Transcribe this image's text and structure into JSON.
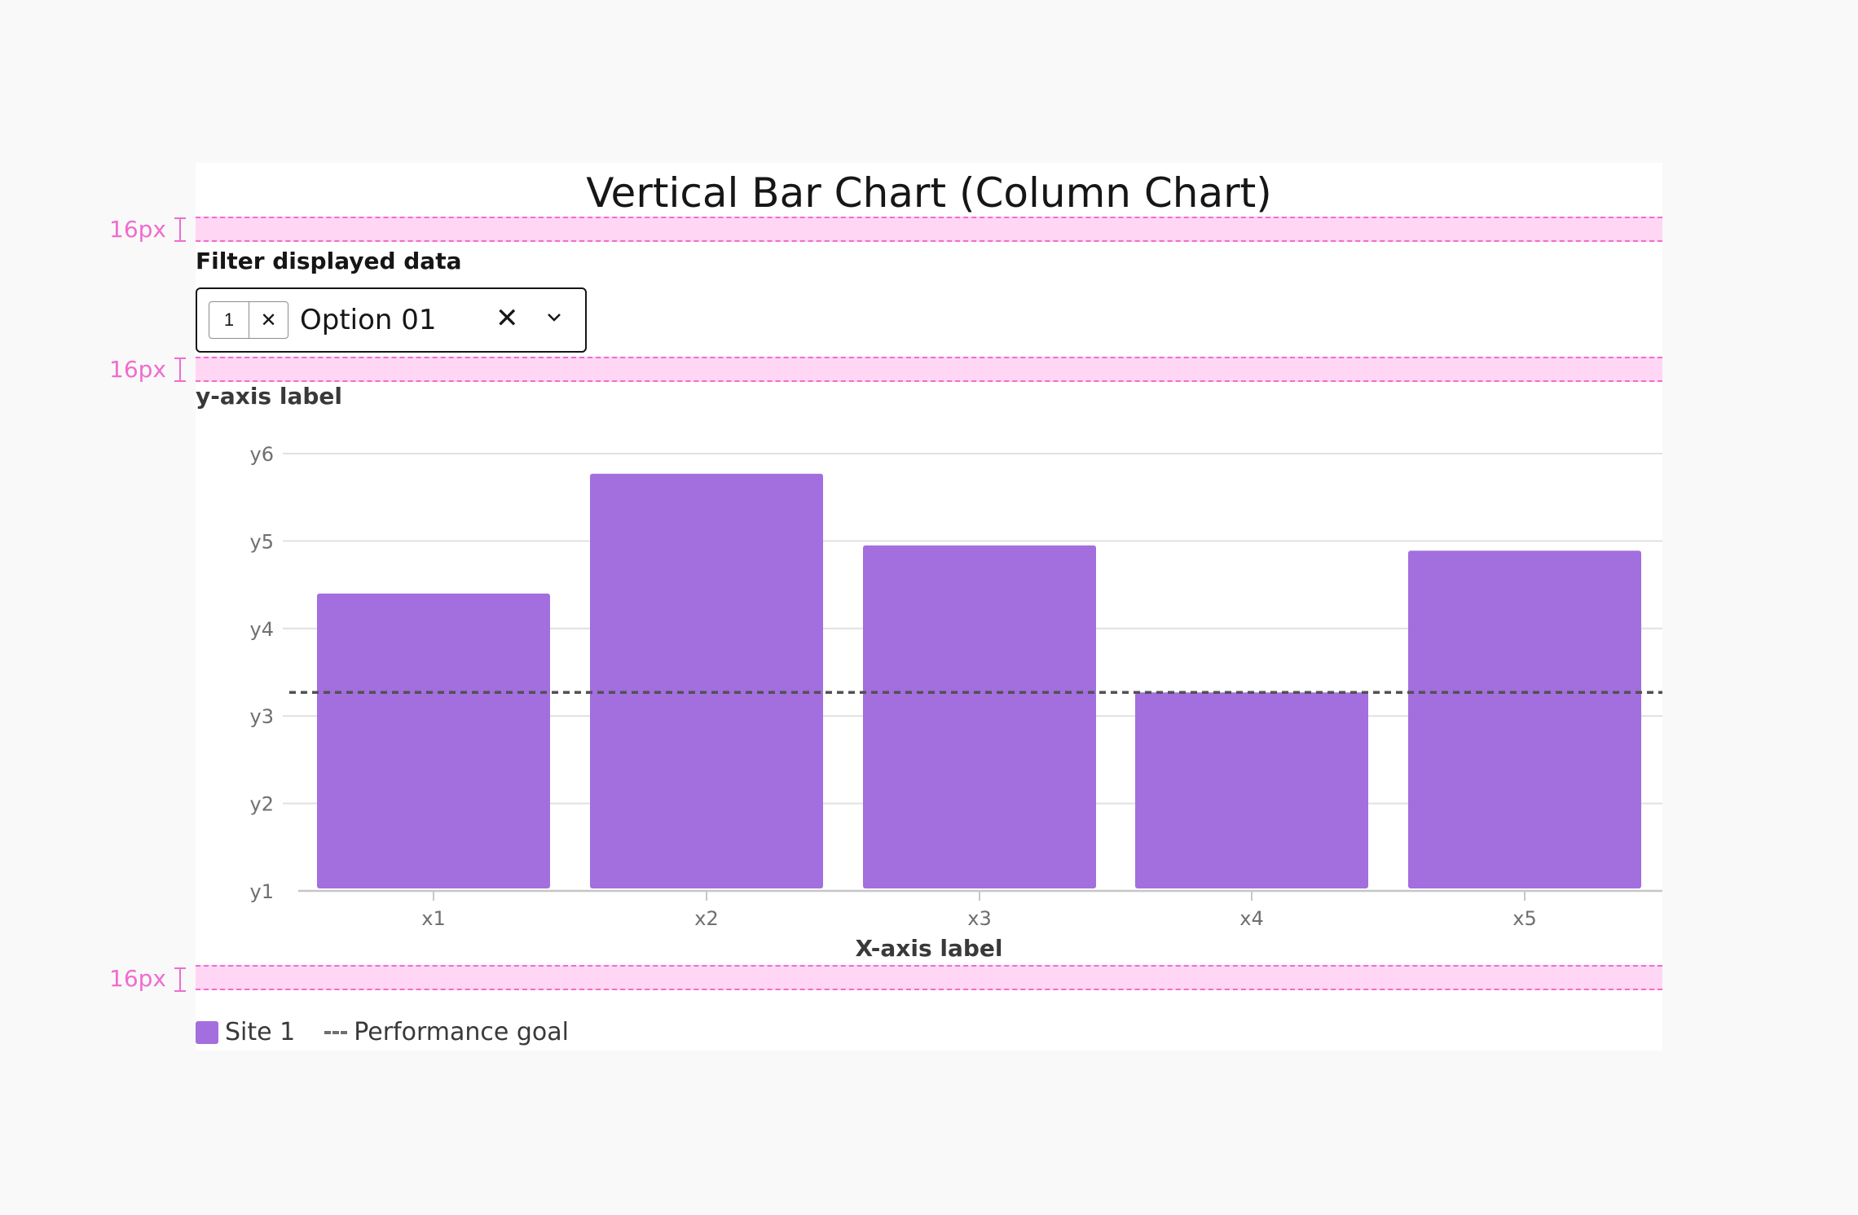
{
  "title": "Vertical Bar Chart (Column Chart)",
  "spacing_annotation": "16px",
  "filter": {
    "label": "Filter displayed data",
    "tag_count": "1",
    "selected_value": "Option 01"
  },
  "chart_data": {
    "type": "bar",
    "title": "Vertical Bar Chart (Column Chart)",
    "xlabel": "X-axis label",
    "ylabel": "y-axis label",
    "categories": [
      "x1",
      "x2",
      "x3",
      "x4",
      "x5"
    ],
    "y_ticks": [
      "y1",
      "y2",
      "y3",
      "y4",
      "y5",
      "y6"
    ],
    "ylim": [
      1,
      6
    ],
    "series": [
      {
        "name": "Site 1",
        "values": [
          4.4,
          5.77,
          4.95,
          3.27,
          4.89
        ],
        "color": "#a36ede"
      }
    ],
    "reference_line": {
      "name": "Performance goal",
      "value": 3.27,
      "color": "#525252"
    },
    "grid": true,
    "legend": "bottom-left"
  },
  "legend": {
    "series_label": "Site 1",
    "goal_label": "Performance goal"
  }
}
